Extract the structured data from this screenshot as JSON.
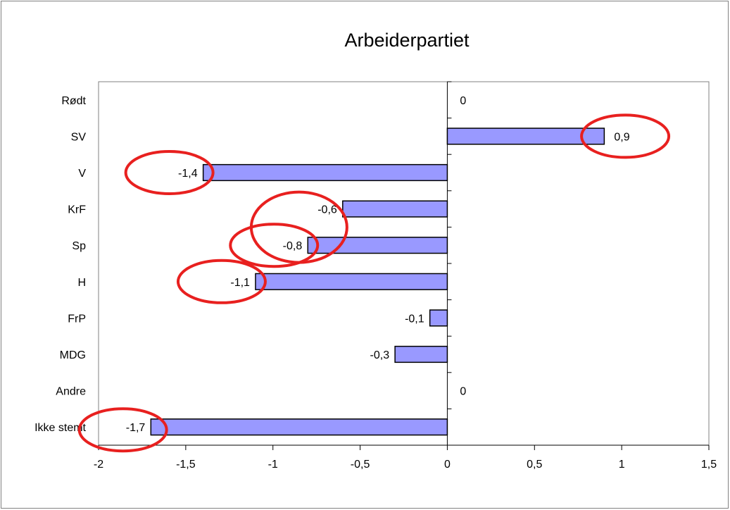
{
  "chart_data": {
    "type": "bar",
    "orientation": "horizontal",
    "title": "Arbeiderpartiet",
    "categories": [
      "Rødt",
      "SV",
      "V",
      "KrF",
      "Sp",
      "H",
      "FrP",
      "MDG",
      "Andre",
      "Ikke stemt"
    ],
    "values": [
      0,
      0.9,
      -1.4,
      -0.6,
      -0.8,
      -1.1,
      -0.1,
      -0.3,
      0,
      -1.7
    ],
    "value_labels": [
      "0",
      "0,9",
      "-1,4",
      "-0,6",
      "-0,8",
      "-1,1",
      "-0,1",
      "-0,3",
      "0",
      "-1,7"
    ],
    "xlim": [
      -2,
      1.5
    ],
    "x_ticks": [
      -2,
      -1.5,
      -1,
      -0.5,
      0,
      0.5,
      1,
      1.5
    ],
    "x_tick_labels": [
      "-2",
      "-1,5",
      "-1",
      "-0,5",
      "0",
      "0,5",
      "1",
      "1,5"
    ],
    "grid": false,
    "legend": "none",
    "bar_color": "#9999ff",
    "bar_edge_color": "#000000",
    "highlight_color": "#e8201f",
    "highlighted_categories": [
      "SV",
      "V",
      "KrF",
      "Sp",
      "H",
      "Ikke stemt"
    ]
  }
}
